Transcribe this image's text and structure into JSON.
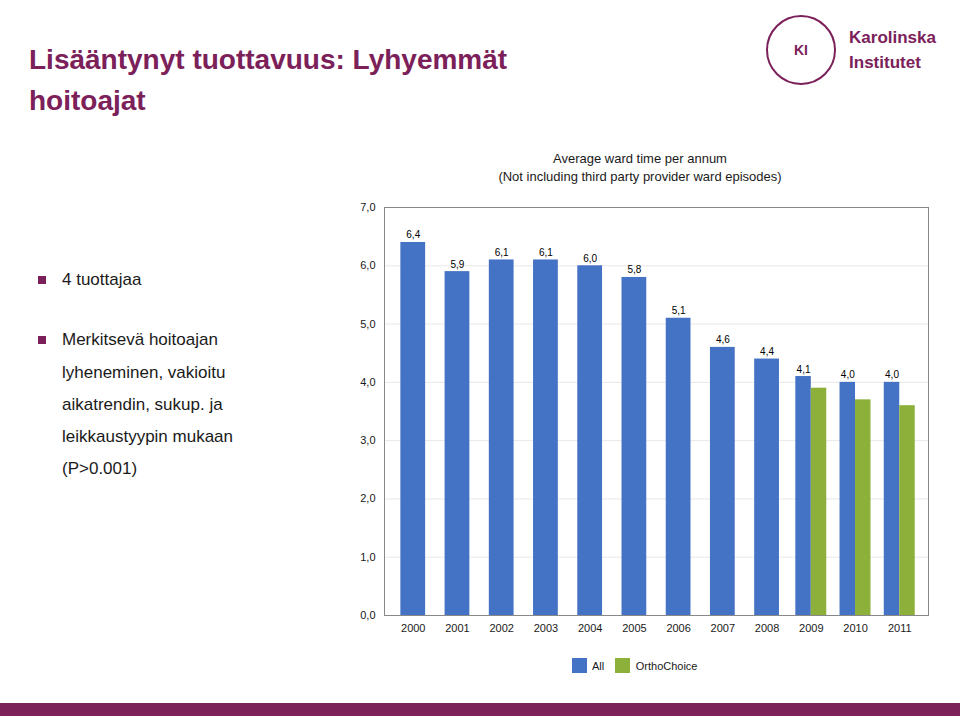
{
  "chart_data": {
    "type": "bar",
    "title": "Average ward time per annum",
    "subtitle": "(Not including third party provider ward episodes)",
    "categories": [
      "2000",
      "2001",
      "2002",
      "2003",
      "2004",
      "2005",
      "2006",
      "2007",
      "2008",
      "2009",
      "2010",
      "2011"
    ],
    "series": [
      {
        "name": "All",
        "color": "#4472C4",
        "values": [
          6.4,
          5.9,
          6.1,
          6.1,
          6.0,
          5.8,
          5.1,
          4.6,
          4.4,
          4.1,
          4.0,
          4.0
        ],
        "data_labels": true,
        "value_labels": [
          "6,4",
          "5,9",
          "6,1",
          "6,1",
          "6,0",
          "5,8",
          "5,1",
          "4,6",
          "4,4",
          "4,1",
          "4,0",
          "4,0"
        ]
      },
      {
        "name": "OrthoChoice",
        "color": "#8DB03A",
        "values": [
          null,
          null,
          null,
          null,
          null,
          null,
          null,
          null,
          null,
          3.9,
          3.7,
          3.6
        ]
      }
    ],
    "ylim": [
      0,
      7.0
    ],
    "yticks": [
      {
        "value": 0.0,
        "label": "0,0"
      },
      {
        "value": 1.0,
        "label": "1,0"
      },
      {
        "value": 2.0,
        "label": "2,0"
      },
      {
        "value": 3.0,
        "label": "3,0"
      },
      {
        "value": 4.0,
        "label": "4,0"
      },
      {
        "value": 5.0,
        "label": "5,0"
      },
      {
        "value": 6.0,
        "label": "6,0"
      },
      {
        "value": 7.0,
        "label": "7,0"
      }
    ],
    "grid": true,
    "legend": "bottom",
    "annotations": [
      "Lisääntynyt tuottavuus: Lyhyemmät",
      "hoitoajat",
      "4 tuottajaa",
      "Merkitsevä hoitoajan",
      "lyheneminen, vakioitu",
      "aikatrendin, sukup. ja",
      "leikkaustyypin mukaan",
      "(P>0.001)",
      "Karolinska",
      "Institutet",
      "KI"
    ]
  }
}
